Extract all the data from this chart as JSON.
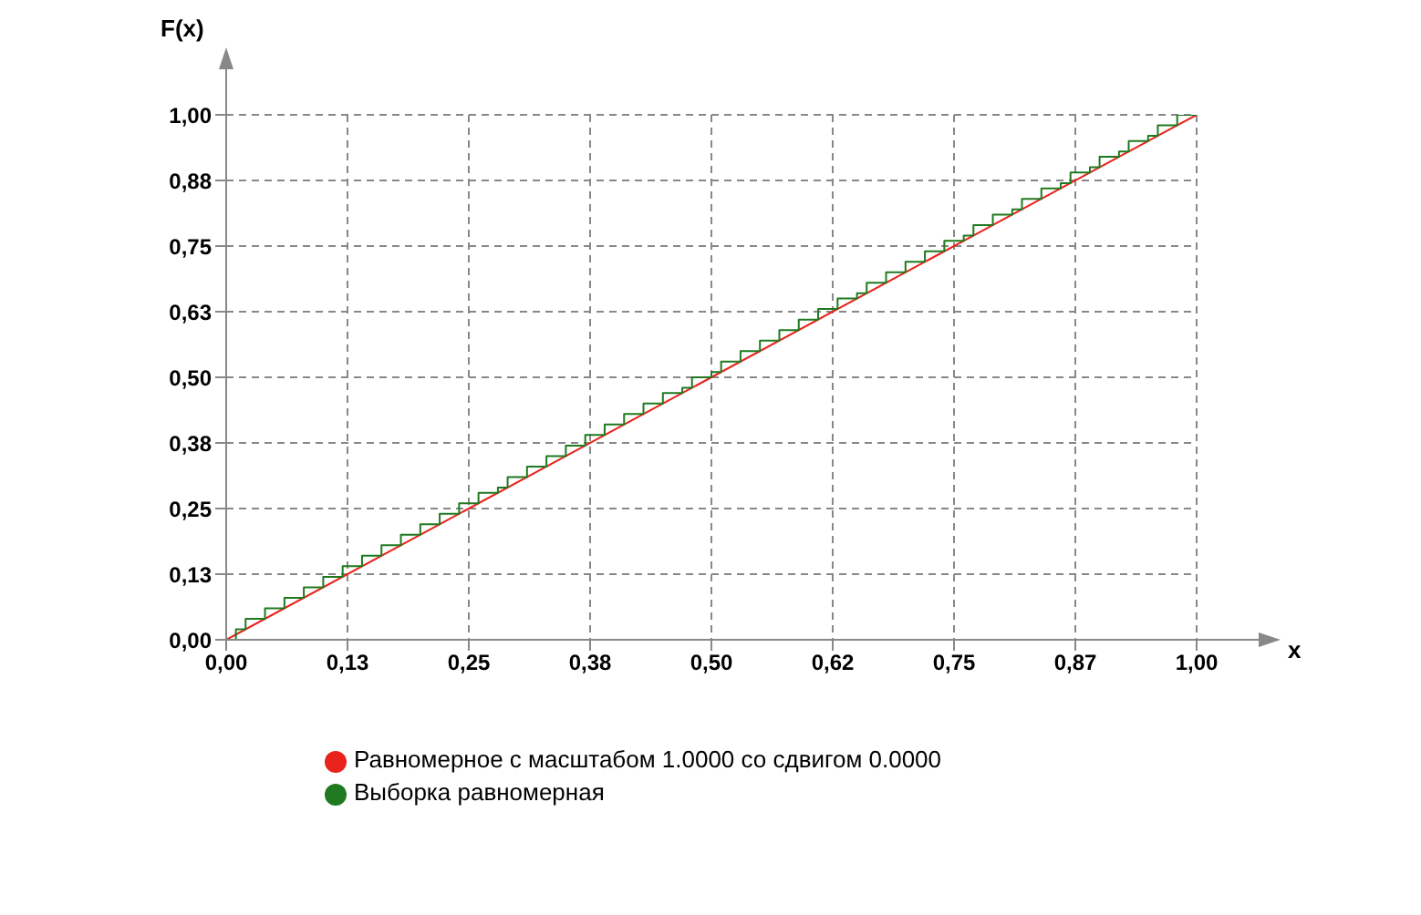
{
  "chart_data": {
    "type": "line",
    "xlabel": "x",
    "ylabel": "F(x)",
    "xlim": [
      0,
      1
    ],
    "ylim": [
      0,
      1
    ],
    "xticks": [
      {
        "value": 0,
        "label": "0,00"
      },
      {
        "value": 0.125,
        "label": "0,13"
      },
      {
        "value": 0.25,
        "label": "0,25"
      },
      {
        "value": 0.375,
        "label": "0,38"
      },
      {
        "value": 0.5,
        "label": "0,50"
      },
      {
        "value": 0.625,
        "label": "0,62"
      },
      {
        "value": 0.75,
        "label": "0,75"
      },
      {
        "value": 0.875,
        "label": "0,87"
      },
      {
        "value": 1,
        "label": "1,00"
      }
    ],
    "yticks": [
      {
        "value": 0,
        "label": "0,00"
      },
      {
        "value": 0.125,
        "label": "0,13"
      },
      {
        "value": 0.25,
        "label": "0,25"
      },
      {
        "value": 0.375,
        "label": "0,38"
      },
      {
        "value": 0.5,
        "label": "0,50"
      },
      {
        "value": 0.625,
        "label": "0,63"
      },
      {
        "value": 0.75,
        "label": "0,75"
      },
      {
        "value": 0.875,
        "label": "0,88"
      },
      {
        "value": 1,
        "label": "1,00"
      }
    ],
    "grid": true,
    "legend": "bottom",
    "marker": "none",
    "series": [
      {
        "name": "Равномерное с масштабом 1.0000 со сдвигом 0.0000",
        "color": "#e8231b",
        "x": [
          0,
          1
        ],
        "values": [
          0,
          1
        ]
      },
      {
        "name": "Выборка равномерная",
        "color": "#1f7a1f",
        "type": "step",
        "x": [
          0,
          0.01,
          0.02,
          0.04,
          0.06,
          0.08,
          0.1,
          0.12,
          0.14,
          0.16,
          0.18,
          0.2,
          0.22,
          0.24,
          0.26,
          0.28,
          0.29,
          0.31,
          0.33,
          0.35,
          0.37,
          0.39,
          0.41,
          0.43,
          0.45,
          0.47,
          0.48,
          0.5,
          0.51,
          0.53,
          0.55,
          0.57,
          0.59,
          0.61,
          0.63,
          0.65,
          0.66,
          0.68,
          0.7,
          0.72,
          0.74,
          0.76,
          0.77,
          0.79,
          0.81,
          0.82,
          0.84,
          0.86,
          0.87,
          0.89,
          0.9,
          0.92,
          0.93,
          0.95,
          0.96,
          0.98,
          1
        ],
        "values": [
          0,
          0.02,
          0.04,
          0.06,
          0.08,
          0.1,
          0.12,
          0.14,
          0.16,
          0.18,
          0.2,
          0.22,
          0.24,
          0.26,
          0.28,
          0.29,
          0.31,
          0.33,
          0.35,
          0.37,
          0.39,
          0.41,
          0.43,
          0.45,
          0.47,
          0.48,
          0.5,
          0.51,
          0.53,
          0.55,
          0.57,
          0.59,
          0.61,
          0.63,
          0.65,
          0.66,
          0.68,
          0.7,
          0.72,
          0.74,
          0.76,
          0.77,
          0.79,
          0.81,
          0.82,
          0.84,
          0.86,
          0.87,
          0.89,
          0.9,
          0.92,
          0.93,
          0.95,
          0.96,
          0.98,
          1,
          1
        ]
      }
    ]
  }
}
